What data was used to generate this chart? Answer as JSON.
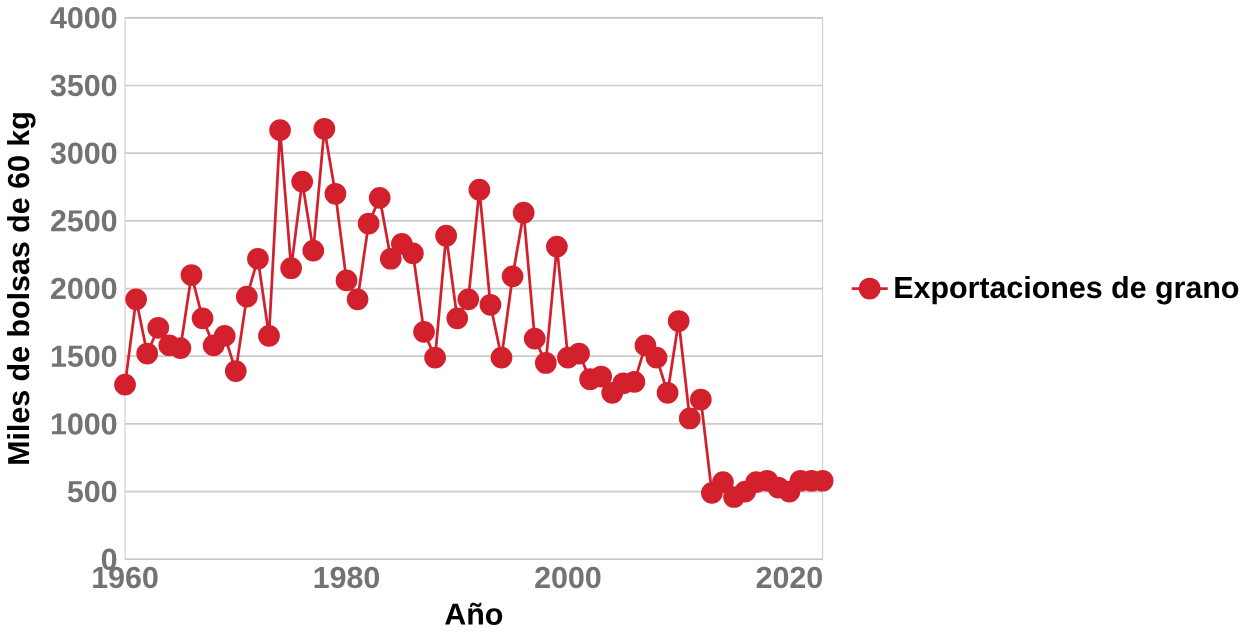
{
  "chart_data": {
    "type": "line",
    "xlabel": "Año",
    "ylabel": "Miles de bolsas de 60 kg",
    "x": [
      1960,
      1961,
      1962,
      1963,
      1964,
      1965,
      1966,
      1967,
      1968,
      1969,
      1970,
      1971,
      1972,
      1973,
      1974,
      1975,
      1976,
      1977,
      1978,
      1979,
      1980,
      1981,
      1982,
      1983,
      1984,
      1985,
      1986,
      1987,
      1988,
      1989,
      1990,
      1991,
      1992,
      1993,
      1994,
      1995,
      1996,
      1997,
      1998,
      1999,
      2000,
      2001,
      2002,
      2003,
      2004,
      2005,
      2006,
      2007,
      2008,
      2009,
      2010,
      2011,
      2012,
      2013,
      2014,
      2015,
      2016,
      2017,
      2018,
      2019,
      2020,
      2021,
      2022,
      2023
    ],
    "series": [
      {
        "name": "Exportaciones de grano",
        "color": "#d2202c",
        "values": [
          1290,
          1920,
          1520,
          1710,
          1580,
          1560,
          2100,
          1780,
          1580,
          1650,
          1390,
          1940,
          2220,
          1650,
          3170,
          2150,
          2790,
          2280,
          3180,
          2700,
          2060,
          1920,
          2480,
          2670,
          2220,
          2330,
          2260,
          1680,
          1490,
          2390,
          1780,
          1920,
          2730,
          1880,
          1490,
          2090,
          2560,
          1630,
          1450,
          2310,
          1490,
          1520,
          1330,
          1350,
          1230,
          1300,
          1310,
          1580,
          1490,
          1230,
          1760,
          1040,
          1180,
          490,
          570,
          460,
          500,
          570,
          580,
          530,
          500,
          580,
          580,
          580
        ]
      }
    ],
    "xlim": [
      1960,
      2023
    ],
    "xticks": [
      1960,
      1980,
      2000,
      2020
    ],
    "ylim": [
      0,
      4000
    ],
    "yticks": [
      0,
      500,
      1000,
      1500,
      2000,
      2500,
      3000,
      3500,
      4000
    ],
    "grid": "y",
    "legend": "right",
    "marker": "circle",
    "line_style": "solid"
  }
}
